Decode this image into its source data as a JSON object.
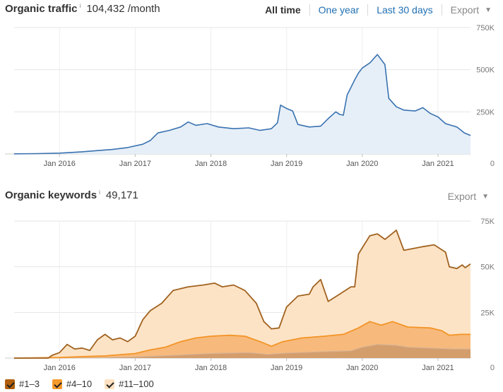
{
  "traffic": {
    "title": "Organic traffic",
    "info": "i",
    "value": "104,432 /month",
    "ranges": [
      "All time",
      "One year",
      "Last 30 days"
    ],
    "export_label": "Export"
  },
  "keywords": {
    "title": "Organic keywords",
    "info": "i",
    "value": "49,171",
    "export_label": "Export"
  },
  "legend": [
    {
      "label": "#1–3",
      "color": "#b05e0c"
    },
    {
      "label": "#4–10",
      "color": "#f59a2c"
    },
    {
      "label": "#11–100",
      "color": "#fde1c0"
    }
  ],
  "colors": {
    "traffic_line": "#3a72b0",
    "traffic_fill": "#e6eff8",
    "kw_top3": "#cf9a6a",
    "kw_4_10": "#f6b36e",
    "kw_11_100": "#fde3c6",
    "kw_line_total": "#a0621f",
    "kw_line_4_10": "#f39426",
    "kw_line_top3": "#d8b393"
  },
  "chart_data": [
    {
      "type": "area",
      "title": "Organic traffic",
      "x_labels": [
        "Jan 2016",
        "Jan 2017",
        "Jan 2018",
        "Jan 2019",
        "Jan 2020",
        "Jan 2021"
      ],
      "x_range": [
        2015.4,
        2021.43
      ],
      "y_ticks": [
        "750K",
        "500K",
        "250K",
        "0"
      ],
      "ylim": [
        0,
        750000
      ],
      "grid": true,
      "series": [
        {
          "points": [
            [
              2015.4,
              1000
            ],
            [
              2015.7,
              2000
            ],
            [
              2016.0,
              5000
            ],
            [
              2016.3,
              13000
            ],
            [
              2016.5,
              20000
            ],
            [
              2016.7,
              27000
            ],
            [
              2016.9,
              38000
            ],
            [
              2017.1,
              58000
            ],
            [
              2017.2,
              80000
            ],
            [
              2017.3,
              125000
            ],
            [
              2017.45,
              140000
            ],
            [
              2017.6,
              160000
            ],
            [
              2017.7,
              190000
            ],
            [
              2017.8,
              170000
            ],
            [
              2017.95,
              180000
            ],
            [
              2018.1,
              160000
            ],
            [
              2018.3,
              150000
            ],
            [
              2018.5,
              155000
            ],
            [
              2018.65,
              140000
            ],
            [
              2018.8,
              150000
            ],
            [
              2018.88,
              185000
            ],
            [
              2018.92,
              290000
            ],
            [
              2019.0,
              270000
            ],
            [
              2019.08,
              255000
            ],
            [
              2019.15,
              175000
            ],
            [
              2019.3,
              160000
            ],
            [
              2019.45,
              165000
            ],
            [
              2019.55,
              210000
            ],
            [
              2019.65,
              250000
            ],
            [
              2019.7,
              235000
            ],
            [
              2019.75,
              230000
            ],
            [
              2019.8,
              350000
            ],
            [
              2019.9,
              440000
            ],
            [
              2019.95,
              480000
            ],
            [
              2020.0,
              510000
            ],
            [
              2020.1,
              540000
            ],
            [
              2020.2,
              590000
            ],
            [
              2020.3,
              530000
            ],
            [
              2020.35,
              330000
            ],
            [
              2020.45,
              280000
            ],
            [
              2020.55,
              260000
            ],
            [
              2020.7,
              255000
            ],
            [
              2020.8,
              275000
            ],
            [
              2020.9,
              240000
            ],
            [
              2021.0,
              220000
            ],
            [
              2021.1,
              180000
            ],
            [
              2021.25,
              160000
            ],
            [
              2021.35,
              125000
            ],
            [
              2021.43,
              110000
            ]
          ]
        }
      ]
    },
    {
      "type": "area",
      "title": "Organic keywords",
      "x_labels": [
        "Jan 2016",
        "Jan 2017",
        "Jan 2018",
        "Jan 2019",
        "Jan 2020",
        "Jan 2021"
      ],
      "x_range": [
        2015.4,
        2021.43
      ],
      "y_ticks": [
        "75K",
        "50K",
        "25K",
        "0"
      ],
      "ylim": [
        0,
        75000
      ],
      "grid": true,
      "series": [
        {
          "name": "#11–100",
          "points": [
            [
              2015.4,
              0
            ],
            [
              2015.85,
              0
            ],
            [
              2015.9,
              1500
            ],
            [
              2016.0,
              3000
            ],
            [
              2016.1,
              7500
            ],
            [
              2016.2,
              5000
            ],
            [
              2016.3,
              5500
            ],
            [
              2016.4,
              4200
            ],
            [
              2016.5,
              10000
            ],
            [
              2016.6,
              13000
            ],
            [
              2016.7,
              10000
            ],
            [
              2016.8,
              11000
            ],
            [
              2016.9,
              9000
            ],
            [
              2017.0,
              12000
            ],
            [
              2017.1,
              21000
            ],
            [
              2017.2,
              26000
            ],
            [
              2017.35,
              30000
            ],
            [
              2017.5,
              37000
            ],
            [
              2017.7,
              39000
            ],
            [
              2017.9,
              40000
            ],
            [
              2018.05,
              41000
            ],
            [
              2018.15,
              39000
            ],
            [
              2018.3,
              40000
            ],
            [
              2018.45,
              37000
            ],
            [
              2018.6,
              30000
            ],
            [
              2018.7,
              20000
            ],
            [
              2018.8,
              16000
            ],
            [
              2018.9,
              16500
            ],
            [
              2019.0,
              28000
            ],
            [
              2019.15,
              34000
            ],
            [
              2019.3,
              35000
            ],
            [
              2019.35,
              39000
            ],
            [
              2019.45,
              43000
            ],
            [
              2019.55,
              31000
            ],
            [
              2019.7,
              35000
            ],
            [
              2019.85,
              39000
            ],
            [
              2019.9,
              39000
            ],
            [
              2019.95,
              57000
            ],
            [
              2020.1,
              67000
            ],
            [
              2020.2,
              68000
            ],
            [
              2020.3,
              65000
            ],
            [
              2020.45,
              70000
            ],
            [
              2020.55,
              59000
            ],
            [
              2020.8,
              61000
            ],
            [
              2020.95,
              62000
            ],
            [
              2021.1,
              58000
            ],
            [
              2021.15,
              50000
            ],
            [
              2021.25,
              49000
            ],
            [
              2021.32,
              51000
            ],
            [
              2021.36,
              49500
            ],
            [
              2021.43,
              51500
            ]
          ]
        },
        {
          "name": "#4–10",
          "points": [
            [
              2015.4,
              0
            ],
            [
              2016.0,
              300
            ],
            [
              2016.3,
              800
            ],
            [
              2016.6,
              1200
            ],
            [
              2017.0,
              2500
            ],
            [
              2017.2,
              4500
            ],
            [
              2017.4,
              6000
            ],
            [
              2017.6,
              9000
            ],
            [
              2017.8,
              11000
            ],
            [
              2018.0,
              12000
            ],
            [
              2018.25,
              12500
            ],
            [
              2018.45,
              12000
            ],
            [
              2018.65,
              9000
            ],
            [
              2018.8,
              6500
            ],
            [
              2018.95,
              9000
            ],
            [
              2019.2,
              11000
            ],
            [
              2019.5,
              12000
            ],
            [
              2019.75,
              13000
            ],
            [
              2019.95,
              16500
            ],
            [
              2020.1,
              20000
            ],
            [
              2020.25,
              18000
            ],
            [
              2020.4,
              20000
            ],
            [
              2020.6,
              17000
            ],
            [
              2020.9,
              16500
            ],
            [
              2021.05,
              15000
            ],
            [
              2021.15,
              12500
            ],
            [
              2021.3,
              13000
            ],
            [
              2021.43,
              13000
            ]
          ]
        },
        {
          "name": "#1–3",
          "points": [
            [
              2015.4,
              0
            ],
            [
              2016.5,
              200
            ],
            [
              2017.0,
              600
            ],
            [
              2017.5,
              1500
            ],
            [
              2018.0,
              2500
            ],
            [
              2018.5,
              3000
            ],
            [
              2018.75,
              2000
            ],
            [
              2019.0,
              2800
            ],
            [
              2019.5,
              3500
            ],
            [
              2019.85,
              4000
            ],
            [
              2020.0,
              6000
            ],
            [
              2020.2,
              7500
            ],
            [
              2020.45,
              7000
            ],
            [
              2020.6,
              6000
            ],
            [
              2020.9,
              5500
            ],
            [
              2021.2,
              5000
            ],
            [
              2021.43,
              5000
            ]
          ]
        }
      ]
    }
  ]
}
